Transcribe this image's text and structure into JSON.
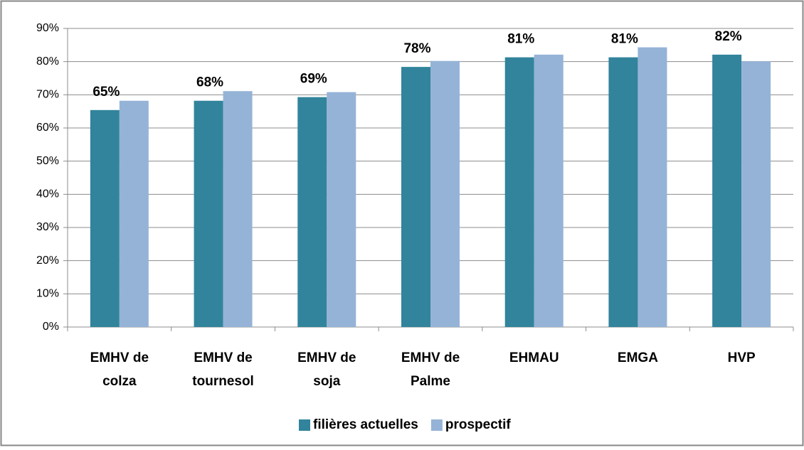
{
  "chart_data": {
    "type": "bar",
    "categories": [
      [
        "EMHV de",
        "colza"
      ],
      [
        "EMHV de",
        "tournesol"
      ],
      [
        "EMHV de",
        "soja"
      ],
      [
        "EMHV de",
        "Palme"
      ],
      [
        "EHMAU"
      ],
      [
        "EMGA"
      ],
      [
        "HVP"
      ]
    ],
    "series": [
      {
        "name": "filières actuelles",
        "color": "#31849b",
        "values": [
          65.4,
          68.2,
          69.3,
          78.4,
          81.3,
          81.3,
          82.1
        ],
        "value_labels": [
          "65%",
          "68%",
          "69%",
          "78%",
          "81%",
          "81%",
          "82%"
        ]
      },
      {
        "name": "prospectif",
        "color": "#95b3d7",
        "values": [
          68.2,
          71.1,
          70.8,
          80.2,
          82.1,
          84.3,
          80.1
        ]
      }
    ],
    "ylim": [
      0,
      90
    ],
    "yticks": [
      {
        "value": 0,
        "label": "0%"
      },
      {
        "value": 10,
        "label": "10%"
      },
      {
        "value": 20,
        "label": "20%"
      },
      {
        "value": 30,
        "label": "30%"
      },
      {
        "value": 40,
        "label": "40%"
      },
      {
        "value": 50,
        "label": "50%"
      },
      {
        "value": 60,
        "label": "60%"
      },
      {
        "value": 70,
        "label": "70%"
      },
      {
        "value": 80,
        "label": "80%"
      },
      {
        "value": 90,
        "label": "90%"
      }
    ],
    "grid": true,
    "legend": "bottom"
  }
}
